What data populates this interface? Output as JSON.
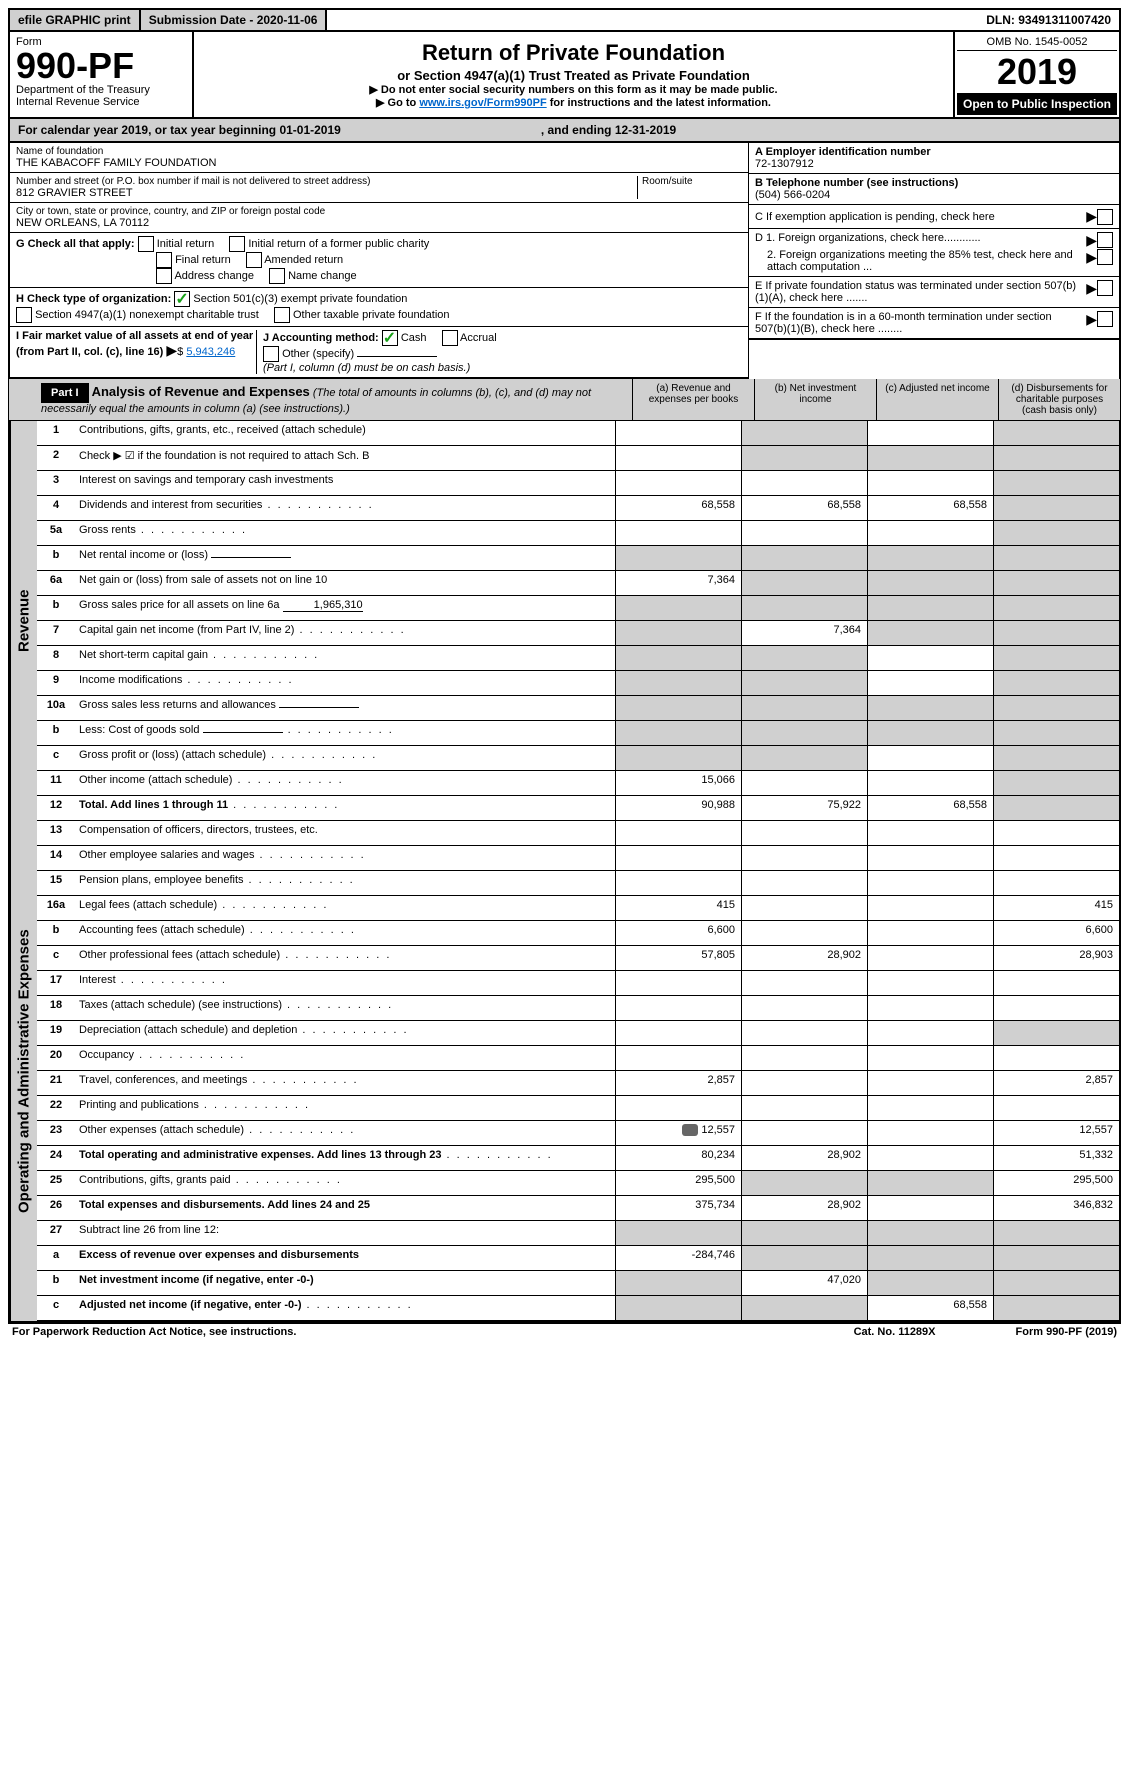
{
  "top": {
    "efile": "efile GRAPHIC print",
    "sub_label": "Submission Date - 2020-11-06",
    "dln": "DLN: 93491311007420"
  },
  "header": {
    "form_word": "Form",
    "form_num": "990-PF",
    "dept": "Department of the Treasury",
    "irs": "Internal Revenue Service",
    "title": "Return of Private Foundation",
    "subtitle": "or Section 4947(a)(1) Trust Treated as Private Foundation",
    "note1": "▶ Do not enter social security numbers on this form as it may be made public.",
    "note2_pre": "▶ Go to ",
    "note2_link": "www.irs.gov/Form990PF",
    "note2_post": " for instructions and the latest information.",
    "omb": "OMB No. 1545-0052",
    "year": "2019",
    "open": "Open to Public Inspection"
  },
  "cal": {
    "a": "For calendar year 2019, or tax year beginning 01-01-2019",
    "b": ", and ending 12-31-2019"
  },
  "foundation": {
    "name_label": "Name of foundation",
    "name": "THE KABACOFF FAMILY FOUNDATION",
    "addr_label": "Number and street (or P.O. box number if mail is not delivered to street address)",
    "addr": "812 GRAVIER STREET",
    "room_label": "Room/suite",
    "city_label": "City or town, state or province, country, and ZIP or foreign postal code",
    "city": "NEW ORLEANS, LA  70112",
    "ein_label": "A Employer identification number",
    "ein": "72-1307912",
    "tel_label": "B Telephone number (see instructions)",
    "tel": "(504) 566-0204",
    "c": "C If exemption application is pending, check here",
    "d1": "D 1. Foreign organizations, check here............",
    "d2": "2. Foreign organizations meeting the 85% test, check here and attach computation ...",
    "e": "E If private foundation status was terminated under section 507(b)(1)(A), check here .......",
    "f": "F If the foundation is in a 60-month termination under section 507(b)(1)(B), check here ........"
  },
  "checks": {
    "g_label": "G Check all that apply:",
    "g1": "Initial return",
    "g2": "Initial return of a former public charity",
    "g3": "Final return",
    "g4": "Amended return",
    "g5": "Address change",
    "g6": "Name change",
    "h_label": "H Check type of organization:",
    "h1": "Section 501(c)(3) exempt private foundation",
    "h2": "Section 4947(a)(1) nonexempt charitable trust",
    "h3": "Other taxable private foundation",
    "i_label": "I Fair market value of all assets at end of year (from Part II, col. (c), line 16)",
    "i_val": "5,943,246",
    "j_label": "J Accounting method:",
    "j1": "Cash",
    "j2": "Accrual",
    "j3": "Other (specify)",
    "j_note": "(Part I, column (d) must be on cash basis.)"
  },
  "part1": {
    "label": "Part I",
    "title": "Analysis of Revenue and Expenses",
    "sub": "(The total of amounts in columns (b), (c), and (d) may not necessarily equal the amounts in column (a) (see instructions).)",
    "cols": {
      "a": "(a) Revenue and expenses per books",
      "b": "(b) Net investment income",
      "c": "(c) Adjusted net income",
      "d": "(d) Disbursements for charitable purposes (cash basis only)"
    }
  },
  "sections": {
    "revenue": "Revenue",
    "expenses": "Operating and Administrative Expenses"
  },
  "rows": [
    {
      "n": "1",
      "d": "Contributions, gifts, grants, etc., received (attach schedule)",
      "a": "",
      "b": "",
      "c": "",
      "dv": "",
      "sb": true,
      "sc": false,
      "sd": true
    },
    {
      "n": "2",
      "d": "Check ▶ ☑ if the foundation is not required to attach Sch. B",
      "a": "",
      "b": "",
      "c": "",
      "dv": "",
      "sb": true,
      "sc": true,
      "sd": true,
      "bold_not": true
    },
    {
      "n": "3",
      "d": "Interest on savings and temporary cash investments",
      "a": "",
      "b": "",
      "c": "",
      "dv": "",
      "sd": true
    },
    {
      "n": "4",
      "d": "Dividends and interest from securities",
      "a": "68,558",
      "b": "68,558",
      "c": "68,558",
      "dv": "",
      "sd": true,
      "dots": true
    },
    {
      "n": "5a",
      "d": "Gross rents",
      "a": "",
      "b": "",
      "c": "",
      "dv": "",
      "sd": true,
      "dots": true
    },
    {
      "n": "b",
      "d": "Net rental income or (loss)",
      "a": "",
      "b": "",
      "c": "",
      "dv": "",
      "sa": true,
      "sb": true,
      "sc": true,
      "sd": true,
      "inline": true
    },
    {
      "n": "6a",
      "d": "Net gain or (loss) from sale of assets not on line 10",
      "a": "7,364",
      "b": "",
      "c": "",
      "dv": "",
      "sb": true,
      "sc": true,
      "sd": true
    },
    {
      "n": "b",
      "d": "Gross sales price for all assets on line 6a",
      "a": "",
      "b": "",
      "c": "",
      "dv": "",
      "val": "1,965,310",
      "sa": true,
      "sb": true,
      "sc": true,
      "sd": true,
      "inline": true
    },
    {
      "n": "7",
      "d": "Capital gain net income (from Part IV, line 2)",
      "a": "",
      "b": "7,364",
      "c": "",
      "dv": "",
      "sa": true,
      "sc": true,
      "sd": true,
      "dots": true
    },
    {
      "n": "8",
      "d": "Net short-term capital gain",
      "a": "",
      "b": "",
      "c": "",
      "dv": "",
      "sa": true,
      "sb": true,
      "sd": true,
      "dots": true
    },
    {
      "n": "9",
      "d": "Income modifications",
      "a": "",
      "b": "",
      "c": "",
      "dv": "",
      "sa": true,
      "sb": true,
      "sd": true,
      "dots": true
    },
    {
      "n": "10a",
      "d": "Gross sales less returns and allowances",
      "a": "",
      "b": "",
      "c": "",
      "dv": "",
      "sa": true,
      "sb": true,
      "sc": true,
      "sd": true,
      "inline": true
    },
    {
      "n": "b",
      "d": "Less: Cost of goods sold",
      "a": "",
      "b": "",
      "c": "",
      "dv": "",
      "sa": true,
      "sb": true,
      "sc": true,
      "sd": true,
      "inline": true,
      "dots": true
    },
    {
      "n": "c",
      "d": "Gross profit or (loss) (attach schedule)",
      "a": "",
      "b": "",
      "c": "",
      "dv": "",
      "sa": true,
      "sb": true,
      "sd": true,
      "dots": true
    },
    {
      "n": "11",
      "d": "Other income (attach schedule)",
      "a": "15,066",
      "b": "",
      "c": "",
      "dv": "",
      "sd": true,
      "dots": true
    },
    {
      "n": "12",
      "d": "Total. Add lines 1 through 11",
      "a": "90,988",
      "b": "75,922",
      "c": "68,558",
      "dv": "",
      "sd": true,
      "bold": true,
      "dots": true
    }
  ],
  "exp_rows": [
    {
      "n": "13",
      "d": "Compensation of officers, directors, trustees, etc.",
      "a": "",
      "b": "",
      "c": "",
      "dv": ""
    },
    {
      "n": "14",
      "d": "Other employee salaries and wages",
      "a": "",
      "b": "",
      "c": "",
      "dv": "",
      "dots": true
    },
    {
      "n": "15",
      "d": "Pension plans, employee benefits",
      "a": "",
      "b": "",
      "c": "",
      "dv": "",
      "dots": true
    },
    {
      "n": "16a",
      "d": "Legal fees (attach schedule)",
      "a": "415",
      "b": "",
      "c": "",
      "dv": "415",
      "dots": true
    },
    {
      "n": "b",
      "d": "Accounting fees (attach schedule)",
      "a": "6,600",
      "b": "",
      "c": "",
      "dv": "6,600",
      "dots": true
    },
    {
      "n": "c",
      "d": "Other professional fees (attach schedule)",
      "a": "57,805",
      "b": "28,902",
      "c": "",
      "dv": "28,903",
      "dots": true
    },
    {
      "n": "17",
      "d": "Interest",
      "a": "",
      "b": "",
      "c": "",
      "dv": "",
      "dots": true
    },
    {
      "n": "18",
      "d": "Taxes (attach schedule) (see instructions)",
      "a": "",
      "b": "",
      "c": "",
      "dv": "",
      "dots": true
    },
    {
      "n": "19",
      "d": "Depreciation (attach schedule) and depletion",
      "a": "",
      "b": "",
      "c": "",
      "dv": "",
      "sd": true,
      "dots": true
    },
    {
      "n": "20",
      "d": "Occupancy",
      "a": "",
      "b": "",
      "c": "",
      "dv": "",
      "dots": true
    },
    {
      "n": "21",
      "d": "Travel, conferences, and meetings",
      "a": "2,857",
      "b": "",
      "c": "",
      "dv": "2,857",
      "dots": true
    },
    {
      "n": "22",
      "d": "Printing and publications",
      "a": "",
      "b": "",
      "c": "",
      "dv": "",
      "dots": true
    },
    {
      "n": "23",
      "d": "Other expenses (attach schedule)",
      "a": "12,557",
      "b": "",
      "c": "",
      "dv": "12,557",
      "icon": true,
      "dots": true
    },
    {
      "n": "24",
      "d": "Total operating and administrative expenses. Add lines 13 through 23",
      "a": "80,234",
      "b": "28,902",
      "c": "",
      "dv": "51,332",
      "bold": true,
      "dots": true
    },
    {
      "n": "25",
      "d": "Contributions, gifts, grants paid",
      "a": "295,500",
      "b": "",
      "c": "",
      "dv": "295,500",
      "sb": true,
      "sc": true,
      "dots": true
    },
    {
      "n": "26",
      "d": "Total expenses and disbursements. Add lines 24 and 25",
      "a": "375,734",
      "b": "28,902",
      "c": "",
      "dv": "346,832",
      "bold": true
    },
    {
      "n": "27",
      "d": "Subtract line 26 from line 12:",
      "a": "",
      "b": "",
      "c": "",
      "dv": "",
      "sa": true,
      "sb": true,
      "sc": true,
      "sd": true
    },
    {
      "n": "a",
      "d": "Excess of revenue over expenses and disbursements",
      "a": "-284,746",
      "b": "",
      "c": "",
      "dv": "",
      "sb": true,
      "sc": true,
      "sd": true,
      "bold": true
    },
    {
      "n": "b",
      "d": "Net investment income (if negative, enter -0-)",
      "a": "",
      "b": "47,020",
      "c": "",
      "dv": "",
      "sa": true,
      "sc": true,
      "sd": true,
      "bold": true
    },
    {
      "n": "c",
      "d": "Adjusted net income (if negative, enter -0-)",
      "a": "",
      "b": "",
      "c": "68,558",
      "dv": "",
      "sa": true,
      "sb": true,
      "sd": true,
      "bold": true,
      "dots": true
    }
  ],
  "footer": {
    "a": "For Paperwork Reduction Act Notice, see instructions.",
    "b": "Cat. No. 11289X",
    "c": "Form 990-PF (2019)"
  }
}
